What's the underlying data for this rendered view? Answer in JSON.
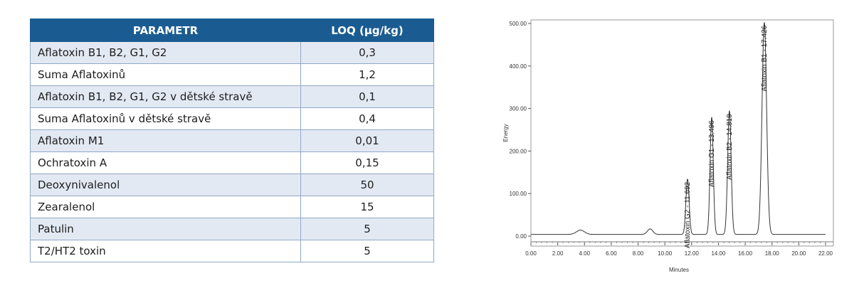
{
  "table": {
    "headers": [
      "PARAMETR",
      "LOQ (µg/kg)"
    ],
    "rows": [
      {
        "parameter": "Aflatoxin B1, B2, G1, G2",
        "loq": "0,3"
      },
      {
        "parameter": "Suma Aflatoxinů",
        "loq": "1,2"
      },
      {
        "parameter": "Aflatoxin B1, B2, G1, G2 v dětské stravě",
        "loq": "0,1"
      },
      {
        "parameter": "Suma Aflatoxinů v dětské stravě",
        "loq": "0,4"
      },
      {
        "parameter": "Aflatoxin M1",
        "loq": "0,01"
      },
      {
        "parameter": "Ochratoxin A",
        "loq": "0,15"
      },
      {
        "parameter": "Deoxynivalenol",
        "loq": "50"
      },
      {
        "parameter": "Zearalenol",
        "loq": "15"
      },
      {
        "parameter": "Patulin",
        "loq": "5"
      },
      {
        "parameter": "T2/HT2 toxin",
        "loq": "5"
      }
    ],
    "colors": {
      "header_bg": "#1a5c92",
      "row_shaded": "#e3e9f3",
      "border": "#8fa8c4"
    }
  },
  "chart_data": {
    "type": "line",
    "xlabel": "Minutes",
    "ylabel": "Energy",
    "xlim": [
      0,
      22
    ],
    "ylim": [
      0,
      500
    ],
    "xticks": [
      "0.00",
      "2.00",
      "4.00",
      "6.00",
      "8.00",
      "10.00",
      "12.00",
      "14.00",
      "16.00",
      "18.00",
      "20.00",
      "22.00"
    ],
    "yticks": [
      "0.00",
      "100.00",
      "200.00",
      "300.00",
      "400.00",
      "500.00"
    ],
    "baseline": 4,
    "peaks": [
      {
        "x": 3.7,
        "height": 10,
        "width": 0.3,
        "label": ""
      },
      {
        "x": 8.9,
        "height": 13,
        "width": 0.2,
        "label": ""
      },
      {
        "x": 11.692,
        "height": 130,
        "width": 0.12,
        "label": "Aflatoxin G2 - 11.692"
      },
      {
        "x": 13.496,
        "height": 275,
        "width": 0.12,
        "label": "Aflatoxin G1 - 13.496"
      },
      {
        "x": 14.819,
        "height": 290,
        "width": 0.13,
        "label": "Aflatoxin B2 - 14.819"
      },
      {
        "x": 17.426,
        "height": 498,
        "width": 0.17,
        "label": "Aflatoxin B1 - 17.426"
      }
    ],
    "line_color": "#333333"
  }
}
